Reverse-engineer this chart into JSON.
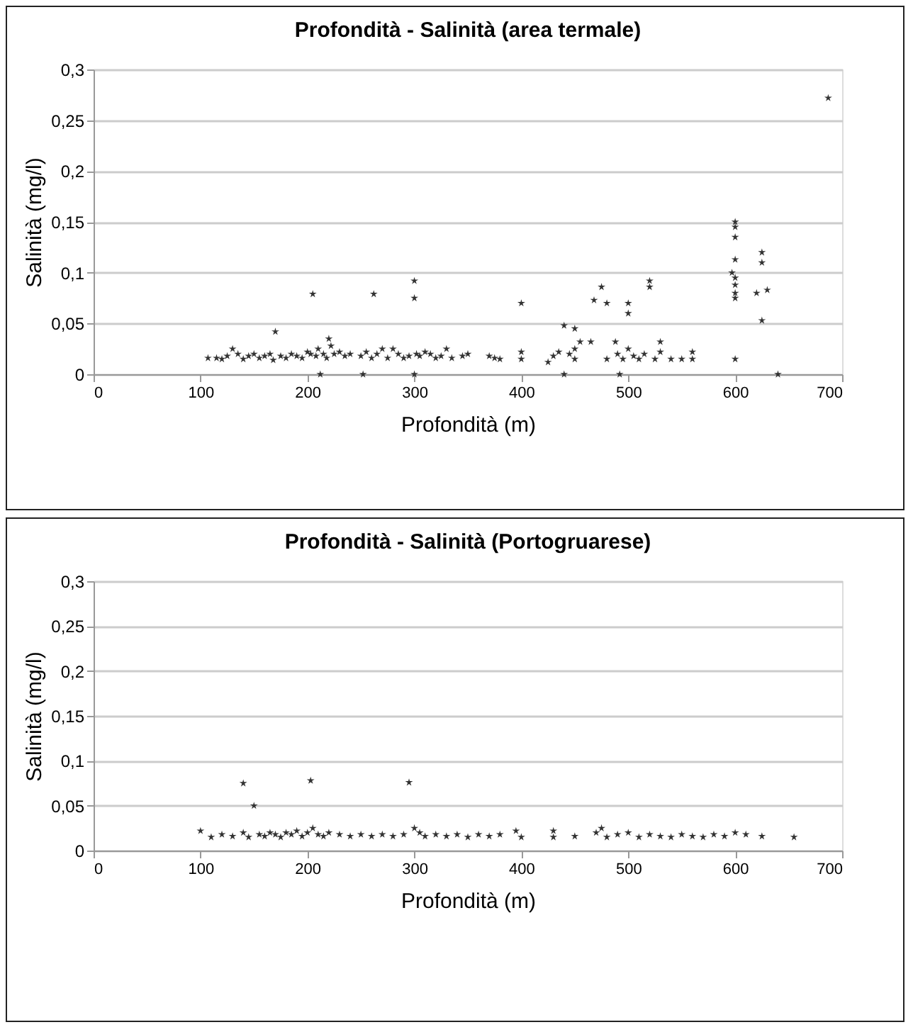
{
  "chart_data": [
    {
      "type": "scatter",
      "title": "Profondità - Salinità (area termale)",
      "xlabel": "Profondità (m)",
      "ylabel": "Salinità (mg/l)",
      "color": "#333333",
      "marker": "star",
      "grid": "y",
      "xlim": [
        0,
        700
      ],
      "xticks": [
        0,
        100,
        200,
        300,
        400,
        500,
        600,
        700
      ],
      "ylim": [
        0,
        0.3
      ],
      "yticks": [
        {
          "value": 0,
          "label": "0"
        },
        {
          "value": 0.05,
          "label": "0,05"
        },
        {
          "value": 0.1,
          "label": "0,1"
        },
        {
          "value": 0.15,
          "label": "0,15"
        },
        {
          "value": 0.2,
          "label": "0,2"
        },
        {
          "value": 0.25,
          "label": "0,25"
        },
        {
          "value": 0.3,
          "label": "0,3"
        }
      ],
      "x": [
        107,
        115,
        120,
        125,
        130,
        135,
        140,
        145,
        150,
        155,
        160,
        165,
        168,
        170,
        175,
        180,
        185,
        190,
        195,
        200,
        203,
        205,
        208,
        210,
        212,
        215,
        218,
        220,
        222,
        225,
        230,
        235,
        240,
        250,
        252,
        255,
        260,
        262,
        265,
        270,
        275,
        280,
        285,
        290,
        295,
        300,
        300,
        300,
        302,
        305,
        310,
        315,
        320,
        325,
        330,
        335,
        345,
        350,
        370,
        375,
        380,
        400,
        400,
        400,
        425,
        430,
        435,
        440,
        440,
        445,
        450,
        450,
        450,
        455,
        465,
        468,
        475,
        480,
        480,
        488,
        490,
        492,
        495,
        500,
        500,
        500,
        505,
        510,
        515,
        520,
        520,
        525,
        530,
        530,
        540,
        550,
        560,
        560,
        597,
        600,
        600,
        600,
        600,
        600,
        600,
        600,
        600,
        600,
        620,
        625,
        625,
        625,
        630,
        640,
        687
      ],
      "values": [
        0.016,
        0.016,
        0.015,
        0.018,
        0.025,
        0.02,
        0.015,
        0.018,
        0.02,
        0.016,
        0.018,
        0.02,
        0.014,
        0.042,
        0.018,
        0.016,
        0.02,
        0.018,
        0.016,
        0.022,
        0.02,
        0.079,
        0.018,
        0.025,
        0,
        0.02,
        0.016,
        0.035,
        0.028,
        0.02,
        0.022,
        0.018,
        0.02,
        0.018,
        0,
        0.022,
        0.016,
        0.079,
        0.02,
        0.025,
        0.016,
        0.025,
        0.02,
        0.016,
        0.018,
        0.092,
        0.075,
        0,
        0.02,
        0.018,
        0.022,
        0.02,
        0.016,
        0.018,
        0.025,
        0.016,
        0.018,
        0.02,
        0.018,
        0.016,
        0.015,
        0.07,
        0.022,
        0.015,
        0.012,
        0.018,
        0.022,
        0.048,
        0,
        0.02,
        0.045,
        0.025,
        0.015,
        0.032,
        0.032,
        0.073,
        0.086,
        0.07,
        0.015,
        0.032,
        0.02,
        0,
        0.015,
        0.07,
        0.06,
        0.025,
        0.018,
        0.015,
        0.02,
        0.092,
        0.086,
        0.015,
        0.032,
        0.022,
        0.015,
        0.015,
        0.022,
        0.015,
        0.1,
        0.15,
        0.145,
        0.135,
        0.113,
        0.095,
        0.088,
        0.08,
        0.075,
        0.015,
        0.08,
        0.12,
        0.11,
        0.053,
        0.083,
        0,
        0.272
      ]
    },
    {
      "type": "scatter",
      "title": "Profondità - Salinità (Portogruarese)",
      "xlabel": "Profondità (m)",
      "ylabel": "Salinità (mg/l)",
      "color": "#333333",
      "marker": "star",
      "grid": "y",
      "xlim": [
        0,
        700
      ],
      "xticks": [
        0,
        100,
        200,
        300,
        400,
        500,
        600,
        700
      ],
      "ylim": [
        0,
        0.3
      ],
      "yticks": [
        {
          "value": 0,
          "label": "0"
        },
        {
          "value": 0.05,
          "label": "0,05"
        },
        {
          "value": 0.1,
          "label": "0,1"
        },
        {
          "value": 0.15,
          "label": "0,15"
        },
        {
          "value": 0.2,
          "label": "0,2"
        },
        {
          "value": 0.25,
          "label": "0,25"
        },
        {
          "value": 0.3,
          "label": "0,3"
        }
      ],
      "x": [
        100,
        110,
        120,
        130,
        140,
        140,
        145,
        150,
        155,
        160,
        165,
        170,
        175,
        180,
        185,
        190,
        195,
        200,
        203,
        205,
        210,
        215,
        220,
        230,
        240,
        250,
        260,
        270,
        280,
        290,
        295,
        300,
        305,
        310,
        320,
        330,
        340,
        350,
        360,
        370,
        380,
        395,
        400,
        430,
        430,
        450,
        470,
        475,
        480,
        490,
        500,
        510,
        520,
        530,
        540,
        550,
        560,
        570,
        580,
        590,
        600,
        610,
        625,
        655
      ],
      "values": [
        0.022,
        0.015,
        0.018,
        0.016,
        0.075,
        0.02,
        0.015,
        0.05,
        0.018,
        0.016,
        0.02,
        0.018,
        0.015,
        0.02,
        0.018,
        0.022,
        0.016,
        0.02,
        0.078,
        0.025,
        0.018,
        0.016,
        0.02,
        0.018,
        0.016,
        0.018,
        0.016,
        0.018,
        0.016,
        0.018,
        0.076,
        0.025,
        0.02,
        0.016,
        0.018,
        0.016,
        0.018,
        0.015,
        0.018,
        0.016,
        0.018,
        0.022,
        0.015,
        0.022,
        0.015,
        0.016,
        0.02,
        0.025,
        0.015,
        0.018,
        0.02,
        0.015,
        0.018,
        0.016,
        0.015,
        0.018,
        0.016,
        0.015,
        0.018,
        0.016,
        0.02,
        0.018,
        0.016,
        0.015
      ]
    }
  ]
}
